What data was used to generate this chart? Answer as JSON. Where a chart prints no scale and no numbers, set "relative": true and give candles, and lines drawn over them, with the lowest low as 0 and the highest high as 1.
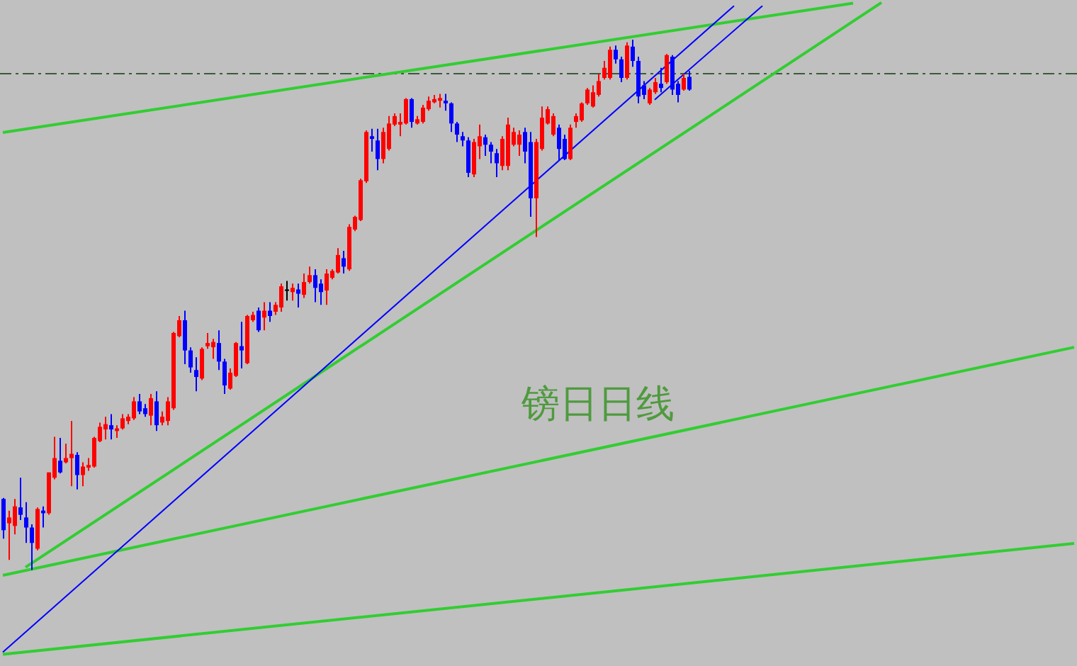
{
  "chart_data": {
    "type": "candlestick",
    "relative": true,
    "categories": [
      null,
      null,
      null,
      null,
      null,
      null,
      null,
      null,
      null,
      null,
      null,
      null,
      null,
      null,
      null,
      null,
      null,
      null,
      null,
      null,
      null,
      null,
      null,
      null,
      null,
      null,
      null,
      null,
      null,
      null,
      null,
      null,
      null,
      null,
      null,
      null,
      null,
      null,
      null,
      null,
      null,
      null,
      null,
      null,
      null,
      null,
      null,
      null,
      null,
      null,
      null,
      null,
      null,
      null,
      null,
      null,
      null,
      null,
      null,
      null,
      null,
      null,
      null,
      null,
      null,
      null,
      null,
      null,
      null,
      null,
      null,
      null,
      null,
      null,
      null,
      null,
      null,
      null,
      null,
      null,
      null,
      null,
      null,
      null,
      null,
      null,
      null,
      null,
      null,
      null,
      null,
      null,
      null,
      null,
      null,
      null,
      null,
      null,
      null,
      null,
      null,
      null,
      null,
      null,
      null,
      null,
      null,
      null,
      null,
      null,
      null,
      null,
      null,
      null,
      null,
      null,
      null,
      null,
      null,
      null,
      null,
      null,
      null,
      null,
      null,
      null,
      null,
      null,
      null,
      null,
      null,
      null,
      null,
      null,
      null,
      null,
      null,
      null,
      null,
      null,
      null,
      null,
      null,
      null,
      null,
      null,
      null,
      null,
      null,
      null,
      null,
      null,
      null,
      null,
      null,
      null,
      null,
      null,
      null,
      null,
      null,
      null,
      null,
      null,
      null,
      null,
      null,
      null,
      null,
      null,
      null,
      null,
      null,
      null,
      null,
      null,
      null,
      null,
      null,
      null,
      null,
      null,
      null,
      null,
      null,
      null,
      null,
      null,
      null,
      null
    ],
    "ohlc": [
      [
        0.134,
        0.136,
        0.059,
        0.075
      ],
      [
        0.088,
        0.112,
        0.019,
        0.099
      ],
      [
        0.083,
        0.134,
        0.067,
        0.12
      ],
      [
        0.118,
        0.174,
        0.094,
        0.104
      ],
      [
        0.099,
        0.128,
        0.051,
        0.08
      ],
      [
        0.08,
        0.086,
        0,
        0.051
      ],
      [
        0.04,
        0.118,
        0.037,
        0.115
      ],
      [
        0.112,
        0.12,
        0.08,
        0.107
      ],
      [
        0.107,
        0.184,
        0.104,
        0.184
      ],
      [
        0.174,
        0.251,
        0.171,
        0.211
      ],
      [
        0.206,
        0.249,
        0.182,
        0.184
      ],
      [
        0.203,
        0.238,
        0.201,
        0.211
      ],
      [
        0.211,
        0.281,
        0.158,
        0.219
      ],
      [
        0.217,
        0.222,
        0.152,
        0.179
      ],
      [
        0.179,
        0.203,
        0.158,
        0.195
      ],
      [
        0.193,
        0.211,
        0.187,
        0.198
      ],
      [
        0.195,
        0.251,
        0.193,
        0.249
      ],
      [
        0.243,
        0.278,
        0.241,
        0.27
      ],
      [
        0.265,
        0.289,
        0.246,
        0.275
      ],
      [
        0.273,
        0.294,
        0.246,
        0.265
      ],
      [
        0.262,
        0.273,
        0.249,
        0.267
      ],
      [
        0.267,
        0.294,
        0.265,
        0.286
      ],
      [
        0.281,
        0.294,
        0.275,
        0.289
      ],
      [
        0.286,
        0.326,
        0.283,
        0.318
      ],
      [
        0.318,
        0.332,
        0.294,
        0.299
      ],
      [
        0.305,
        0.313,
        0.289,
        0.294
      ],
      [
        0.291,
        0.332,
        0.273,
        0.324
      ],
      [
        0.318,
        0.337,
        0.262,
        0.273
      ],
      [
        0.278,
        0.299,
        0.273,
        0.289
      ],
      [
        0.281,
        0.326,
        0.273,
        0.318
      ],
      [
        0.305,
        0.449,
        0.302,
        0.447
      ],
      [
        0.441,
        0.479,
        0.439,
        0.471
      ],
      [
        0.471,
        0.489,
        0.388,
        0.414
      ],
      [
        0.414,
        0.42,
        0.372,
        0.382
      ],
      [
        0.377,
        0.401,
        0.337,
        0.364
      ],
      [
        0.361,
        0.42,
        0.358,
        0.417
      ],
      [
        0.422,
        0.447,
        0.417,
        0.428
      ],
      [
        0.42,
        0.436,
        0.398,
        0.43
      ],
      [
        0.428,
        0.452,
        0.377,
        0.393
      ],
      [
        0.393,
        0.398,
        0.332,
        0.348
      ],
      [
        0.342,
        0.38,
        0.34,
        0.372
      ],
      [
        0.366,
        0.43,
        0.364,
        0.428
      ],
      [
        0.422,
        0.468,
        0.38,
        0.414
      ],
      [
        0.39,
        0.481,
        0.388,
        0.479
      ],
      [
        0.471,
        0.487,
        0.468,
        0.481
      ],
      [
        0.489,
        0.495,
        0.449,
        0.452
      ],
      [
        0.476,
        0.505,
        0.452,
        0.489
      ],
      [
        0.489,
        0.505,
        0.468,
        0.479
      ],
      [
        0.487,
        0.505,
        0.481,
        0.5
      ],
      [
        0.495,
        0.54,
        0.487,
        0.535
      ],
      [
        0.529,
        0.545,
        0.508,
        0.529
      ],
      [
        0.524,
        0.54,
        0.508,
        0.532
      ],
      [
        0.529,
        0.54,
        0.495,
        0.521
      ],
      [
        0.519,
        0.559,
        0.513,
        0.543
      ],
      [
        0.543,
        0.572,
        0.54,
        0.556
      ],
      [
        0.556,
        0.567,
        0.505,
        0.532
      ],
      [
        0.54,
        0.548,
        0.5,
        0.524
      ],
      [
        0.527,
        0.567,
        0.5,
        0.559
      ],
      [
        0.551,
        0.567,
        0.548,
        0.564
      ],
      [
        0.561,
        0.607,
        0.559,
        0.594
      ],
      [
        0.588,
        0.602,
        0.559,
        0.572
      ],
      [
        0.567,
        0.652,
        0.564,
        0.647
      ],
      [
        0.642,
        0.668,
        0.639,
        0.666
      ],
      [
        0.66,
        0.738,
        0.658,
        0.735
      ],
      [
        0.733,
        0.829,
        0.73,
        0.826
      ],
      [
        0.818,
        0.832,
        0.789,
        0.813
      ],
      [
        0.81,
        0.832,
        0.754,
        0.775
      ],
      [
        0.775,
        0.834,
        0.767,
        0.826
      ],
      [
        0.794,
        0.856,
        0.791,
        0.842
      ],
      [
        0.84,
        0.861,
        0.837,
        0.856
      ],
      [
        0.84,
        0.861,
        0.818,
        0.845
      ],
      [
        0.842,
        0.89,
        0.84,
        0.888
      ],
      [
        0.888,
        0.89,
        0.834,
        0.845
      ],
      [
        0.842,
        0.856,
        0.84,
        0.85
      ],
      [
        0.845,
        0.877,
        0.842,
        0.872
      ],
      [
        0.869,
        0.893,
        0.866,
        0.885
      ],
      [
        0.882,
        0.896,
        0.88,
        0.888
      ],
      [
        0.885,
        0.898,
        0.872,
        0.89
      ],
      [
        0.885,
        0.898,
        0.866,
        0.88
      ],
      [
        0.88,
        0.882,
        0.826,
        0.842
      ],
      [
        0.842,
        0.845,
        0.807,
        0.821
      ],
      [
        0.818,
        0.826,
        0.799,
        0.81
      ],
      [
        0.81,
        0.816,
        0.741,
        0.749
      ],
      [
        0.746,
        0.813,
        0.741,
        0.807
      ],
      [
        0.799,
        0.84,
        0.775,
        0.818
      ],
      [
        0.816,
        0.821,
        0.781,
        0.802
      ],
      [
        0.802,
        0.807,
        0.767,
        0.789
      ],
      [
        0.786,
        0.794,
        0.741,
        0.767
      ],
      [
        0.762,
        0.818,
        0.754,
        0.813
      ],
      [
        0.762,
        0.853,
        0.754,
        0.84
      ],
      [
        0.802,
        0.834,
        0.799,
        0.826
      ],
      [
        0.802,
        0.829,
        0.781,
        0.821
      ],
      [
        0.826,
        0.834,
        0.767,
        0.789
      ],
      [
        0.807,
        0.826,
        0.666,
        0.701
      ],
      [
        0.701,
        0.813,
        0.628,
        0.807
      ],
      [
        0.794,
        0.874,
        0.791,
        0.853
      ],
      [
        0.842,
        0.874,
        0.84,
        0.869
      ],
      [
        0.821,
        0.861,
        0.818,
        0.856
      ],
      [
        0.834,
        0.84,
        0.773,
        0.794
      ],
      [
        0.813,
        0.821,
        0.773,
        0.775
      ],
      [
        0.775,
        0.84,
        0.773,
        0.834
      ],
      [
        0.845,
        0.861,
        0.834,
        0.856
      ],
      [
        0.848,
        0.882,
        0.845,
        0.88
      ],
      [
        0.88,
        0.909,
        0.877,
        0.906
      ],
      [
        0.874,
        0.914,
        0.872,
        0.901
      ],
      [
        0.896,
        0.936,
        0.893,
        0.922
      ],
      [
        0.928,
        0.96,
        0.925,
        0.947
      ],
      [
        0.928,
        0.987,
        0.925,
        0.981
      ],
      [
        0.981,
        0.989,
        0.955,
        0.963
      ],
      [
        0.963,
        0.968,
        0.92,
        0.928
      ],
      [
        0.928,
        0.995,
        0.925,
        0.989
      ],
      [
        0.987,
        1,
        0.949,
        0.96
      ],
      [
        0.96,
        0.968,
        0.88,
        0.893
      ],
      [
        0.914,
        0.922,
        0.888,
        0.896
      ],
      [
        0.88,
        0.909,
        0.877,
        0.906
      ],
      [
        0.901,
        0.928,
        0.898,
        0.92
      ],
      [
        0.917,
        0.947,
        0.901,
        0.909
      ],
      [
        0.92,
        0.973,
        0.917,
        0.971
      ],
      [
        0.968,
        0.971,
        0.896,
        0.906
      ],
      [
        0.917,
        0.922,
        0.882,
        0.896
      ],
      [
        0.906,
        0.936,
        0.904,
        0.928
      ],
      [
        0.93,
        0.941,
        0.904,
        0.906
      ],
      null,
      null,
      null,
      null,
      null,
      null,
      null,
      null,
      null,
      null,
      null,
      null,
      null,
      null,
      null,
      null,
      null,
      null,
      null,
      null,
      null,
      null,
      null,
      null,
      null,
      null,
      null,
      null,
      null,
      null,
      null,
      null,
      null,
      null,
      null,
      null,
      null,
      null,
      null,
      null,
      null,
      null,
      null,
      null,
      null,
      null,
      null,
      null,
      null,
      null,
      null,
      null,
      null,
      null,
      null,
      null,
      null,
      null,
      null,
      null,
      null,
      null,
      null,
      null,
      null,
      null,
      null,
      null
    ],
    "colors": [
      "#0000ff",
      "#ff0000",
      "#ff0000",
      "#0000ff",
      "#0000ff",
      "#0000ff",
      "#ff0000",
      "#0000ff",
      "#ff0000",
      "#ff0000",
      "#0000ff",
      "#ff0000",
      "#ff0000",
      "#0000ff",
      "#ff0000",
      "#ff0000",
      "#ff0000",
      "#ff0000",
      "#ff0000",
      "#0000ff",
      "#ff0000",
      "#ff0000",
      "#ff0000",
      "#ff0000",
      "#0000ff",
      "#0000ff",
      "#ff0000",
      "#0000ff",
      "#ff0000",
      "#ff0000",
      "#ff0000",
      "#ff0000",
      "#0000ff",
      "#0000ff",
      "#0000ff",
      "#ff0000",
      "#ff0000",
      "#ff0000",
      "#0000ff",
      "#0000ff",
      "#ff0000",
      "#ff0000",
      "#0000ff",
      "#ff0000",
      "#ff0000",
      "#0000ff",
      "#ff0000",
      "#0000ff",
      "#ff0000",
      "#ff0000",
      "#000000",
      "#ff0000",
      "#0000ff",
      "#ff0000",
      "#ff0000",
      "#0000ff",
      "#0000ff",
      "#ff0000",
      "#ff0000",
      "#ff0000",
      "#0000ff",
      "#ff0000",
      "#ff0000",
      "#ff0000",
      "#ff0000",
      "#0000ff",
      "#0000ff",
      "#ff0000",
      "#ff0000",
      "#ff0000",
      "#ff0000",
      "#ff0000",
      "#0000ff",
      "#ff0000",
      "#ff0000",
      "#ff0000",
      "#ff0000",
      "#ff0000",
      "#0000ff",
      "#0000ff",
      "#0000ff",
      "#0000ff",
      "#0000ff",
      "#ff0000",
      "#ff0000",
      "#0000ff",
      "#0000ff",
      "#0000ff",
      "#ff0000",
      "#ff0000",
      "#ff0000",
      "#ff0000",
      "#0000ff",
      "#0000ff",
      "#ff0000",
      "#ff0000",
      "#ff0000",
      "#ff0000",
      "#0000ff",
      "#0000ff",
      "#ff0000",
      "#ff0000",
      "#ff0000",
      "#ff0000",
      "#ff0000",
      "#ff0000",
      "#ff0000",
      "#ff0000",
      "#0000ff",
      "#0000ff",
      "#ff0000",
      "#0000ff",
      "#0000ff",
      "#0000ff",
      "#ff0000",
      "#ff0000",
      "#0000ff",
      "#ff0000",
      "#0000ff",
      "#0000ff",
      "#ff0000",
      "#0000ff",
      null,
      null,
      null,
      null,
      null,
      null,
      null,
      null,
      null,
      null,
      null,
      null,
      null,
      null,
      null,
      null,
      null,
      null,
      null,
      null,
      null,
      null,
      null,
      null,
      null,
      null,
      null,
      null,
      null,
      null,
      null,
      null,
      null,
      null,
      null,
      null,
      null,
      null,
      null,
      null,
      null,
      null,
      null,
      null,
      null,
      null,
      null,
      null,
      null,
      null,
      null,
      null,
      null,
      null,
      null,
      null,
      null,
      null,
      null,
      null,
      null,
      null,
      null,
      null,
      null,
      null,
      null,
      null
    ],
    "series": [
      {
        "type": "line",
        "color": "#32cd32",
        "values": [
          0.825,
          null,
          null,
          null,
          null,
          null,
          null,
          null,
          null,
          null,
          null,
          null,
          null,
          null,
          null,
          null,
          null,
          null,
          null,
          null,
          null,
          null,
          null,
          null,
          null,
          null,
          null,
          null,
          null,
          null,
          null,
          null,
          null,
          null,
          null,
          null,
          null,
          null,
          null,
          null,
          null,
          null,
          null,
          null,
          null,
          null,
          null,
          null,
          null,
          null,
          null,
          null,
          null,
          null,
          null,
          null,
          null,
          null,
          null,
          null,
          null,
          null,
          null,
          null,
          null,
          null,
          null,
          null,
          null,
          null,
          null,
          null,
          null,
          null,
          null,
          null,
          null,
          null,
          null,
          null,
          null,
          null,
          null,
          null,
          null,
          null,
          null,
          null,
          null,
          null,
          null,
          null,
          null,
          null,
          null,
          null,
          null,
          null,
          null,
          null,
          null,
          null,
          null,
          null,
          null,
          null,
          null,
          null,
          null,
          null,
          null,
          null,
          null,
          null,
          null,
          null,
          null,
          null,
          null,
          null,
          null,
          null,
          null,
          null,
          null,
          null,
          null,
          null,
          null,
          null,
          null,
          null,
          null,
          null,
          null,
          null,
          null,
          null,
          null,
          null,
          null,
          null,
          null,
          null,
          null,
          null,
          null,
          null,
          null,
          null,
          1.069,
          null,
          null,
          null,
          null,
          null,
          null,
          null,
          null,
          null,
          null,
          null,
          null,
          null,
          null,
          null,
          null,
          null,
          null,
          null,
          null,
          null,
          null,
          null,
          null,
          null,
          null,
          null,
          null,
          null,
          null,
          null,
          null,
          null,
          null,
          null,
          null,
          null,
          null,
          null
        ]
      },
      {
        "type": "line",
        "color": "#32cd32",
        "values": [
          null,
          null,
          null,
          null,
          0.005,
          null,
          null,
          null,
          null,
          null,
          null,
          null,
          null,
          null,
          null,
          null,
          null,
          null,
          null,
          null,
          null,
          null,
          null,
          null,
          null,
          null,
          null,
          null,
          null,
          null,
          null,
          null,
          null,
          null,
          null,
          null,
          null,
          null,
          null,
          null,
          null,
          null,
          null,
          null,
          null,
          null,
          null,
          null,
          null,
          null,
          null,
          null,
          null,
          null,
          null,
          null,
          null,
          null,
          null,
          null,
          null,
          null,
          null,
          null,
          null,
          null,
          null,
          null,
          null,
          null,
          null,
          null,
          null,
          null,
          null,
          null,
          null,
          null,
          null,
          null,
          null,
          null,
          null,
          null,
          null,
          null,
          null,
          null,
          null,
          null,
          null,
          null,
          null,
          null,
          null,
          null,
          null,
          null,
          null,
          null,
          null,
          null,
          null,
          null,
          null,
          null,
          null,
          null,
          null,
          null,
          null,
          null,
          null,
          null,
          null,
          null,
          null,
          null,
          null,
          null,
          null,
          null,
          null,
          null,
          null,
          null,
          null,
          null,
          null,
          null,
          null,
          null,
          null,
          null,
          null,
          null,
          null,
          null,
          null,
          null,
          null,
          null,
          null,
          null,
          null,
          null,
          null,
          null,
          null,
          null,
          null,
          null,
          null,
          null,
          null,
          1.07,
          null,
          null,
          null,
          null,
          null,
          null,
          null,
          null,
          null,
          null,
          null,
          null,
          null,
          null,
          null,
          null,
          null,
          null,
          null,
          null,
          null,
          null,
          null,
          null,
          null,
          null,
          null,
          null,
          null,
          null,
          null,
          null,
          null,
          null
        ]
      },
      {
        "type": "line",
        "color": "#32cd32",
        "values": [
          -0.01,
          null,
          null,
          null,
          null,
          null,
          null,
          null,
          null,
          null,
          null,
          null,
          null,
          null,
          null,
          null,
          null,
          null,
          null,
          null,
          null,
          null,
          null,
          null,
          null,
          null,
          null,
          null,
          null,
          null,
          null,
          null,
          null,
          null,
          null,
          null,
          null,
          null,
          null,
          null,
          null,
          null,
          null,
          null,
          null,
          null,
          null,
          null,
          null,
          null,
          null,
          null,
          null,
          null,
          null,
          null,
          null,
          null,
          null,
          null,
          null,
          null,
          null,
          null,
          null,
          null,
          null,
          null,
          null,
          null,
          null,
          null,
          null,
          null,
          null,
          null,
          null,
          null,
          null,
          null,
          null,
          null,
          null,
          null,
          null,
          null,
          null,
          null,
          null,
          null,
          null,
          null,
          null,
          null,
          null,
          null,
          null,
          null,
          null,
          null,
          null,
          null,
          null,
          null,
          null,
          null,
          null,
          null,
          null,
          null,
          null,
          null,
          null,
          null,
          null,
          null,
          null,
          null,
          null,
          null,
          null,
          null,
          null,
          null,
          null,
          null,
          null,
          null,
          null,
          null,
          null,
          null,
          null,
          null,
          null,
          null,
          null,
          null,
          null,
          null,
          null,
          null,
          null,
          null,
          null,
          null,
          null,
          null,
          null,
          null,
          null,
          null,
          null,
          null,
          null,
          null,
          null,
          null,
          null,
          null,
          null,
          null,
          null,
          null,
          null,
          null,
          null,
          null,
          null,
          null,
          null,
          null,
          null,
          null,
          null,
          null,
          null,
          null,
          null,
          null,
          null,
          null,
          null,
          null,
          null,
          null,
          null,
          null,
          null,
          0.42
        ]
      },
      {
        "type": "line",
        "color": "#32cd32",
        "values": [
          -0.159,
          null,
          null,
          null,
          null,
          null,
          null,
          null,
          null,
          null,
          null,
          null,
          null,
          null,
          null,
          null,
          null,
          null,
          null,
          null,
          null,
          null,
          null,
          null,
          null,
          null,
          null,
          null,
          null,
          null,
          null,
          null,
          null,
          null,
          null,
          null,
          null,
          null,
          null,
          null,
          null,
          null,
          null,
          null,
          null,
          null,
          null,
          null,
          null,
          null,
          null,
          null,
          null,
          null,
          null,
          null,
          null,
          null,
          null,
          null,
          null,
          null,
          null,
          null,
          null,
          null,
          null,
          null,
          null,
          null,
          null,
          null,
          null,
          null,
          null,
          null,
          null,
          null,
          null,
          null,
          null,
          null,
          null,
          null,
          null,
          null,
          null,
          null,
          null,
          null,
          null,
          null,
          null,
          null,
          null,
          null,
          null,
          null,
          null,
          null,
          null,
          null,
          null,
          null,
          null,
          null,
          null,
          null,
          null,
          null,
          null,
          null,
          null,
          null,
          null,
          null,
          null,
          null,
          null,
          null,
          null,
          null,
          null,
          null,
          null,
          null,
          null,
          null,
          null,
          null,
          null,
          null,
          null,
          null,
          null,
          null,
          null,
          null,
          null,
          null,
          null,
          null,
          null,
          null,
          null,
          null,
          null,
          null,
          null,
          null,
          null,
          null,
          null,
          null,
          null,
          null,
          null,
          null,
          null,
          null,
          null,
          null,
          null,
          null,
          null,
          null,
          null,
          null,
          null,
          null,
          null,
          null,
          null,
          null,
          null,
          null,
          null,
          null,
          null,
          null,
          null,
          null,
          null,
          null,
          null,
          null,
          null,
          null,
          null,
          0.05
        ]
      },
      {
        "type": "line",
        "color": "#0000ff",
        "values": [
          -0.155,
          null,
          null,
          null,
          null,
          null,
          null,
          null,
          null,
          null,
          null,
          null,
          null,
          null,
          null,
          null,
          null,
          null,
          null,
          null,
          null,
          null,
          null,
          null,
          null,
          null,
          null,
          null,
          null,
          null,
          null,
          null,
          null,
          null,
          null,
          null,
          null,
          null,
          null,
          null,
          null,
          null,
          null,
          null,
          null,
          null,
          null,
          null,
          null,
          null,
          null,
          null,
          null,
          null,
          null,
          null,
          null,
          null,
          null,
          null,
          null,
          null,
          null,
          null,
          null,
          null,
          null,
          null,
          null,
          null,
          null,
          null,
          null,
          null,
          null,
          null,
          null,
          null,
          null,
          null,
          null,
          null,
          null,
          null,
          null,
          null,
          null,
          null,
          null,
          null,
          null,
          null,
          null,
          null,
          null,
          null,
          null,
          null,
          null,
          null,
          null,
          null,
          null,
          null,
          null,
          null,
          null,
          null,
          null,
          null,
          null,
          null,
          null,
          null,
          null,
          null,
          null,
          null,
          null,
          null,
          null,
          null,
          null,
          null,
          null,
          null,
          null,
          null,
          null,
          1.064,
          null,
          null,
          null,
          null,
          null,
          null,
          null,
          null,
          null,
          null,
          null,
          null,
          null,
          null,
          null,
          null,
          null,
          null,
          null,
          null,
          null,
          null,
          null,
          null,
          null,
          null,
          null,
          null,
          null,
          null,
          null,
          null,
          null,
          null,
          null,
          null,
          null,
          null,
          null,
          null,
          null,
          null,
          null,
          null,
          null,
          null,
          null,
          null,
          null,
          null,
          null,
          null,
          null,
          null,
          null,
          null,
          null,
          null,
          null,
          null
        ]
      },
      {
        "type": "line",
        "color": "#0000ff",
        "values": [
          null,
          null,
          null,
          null,
          null,
          null,
          null,
          null,
          null,
          null,
          null,
          null,
          null,
          null,
          null,
          null,
          null,
          null,
          null,
          null,
          null,
          null,
          null,
          null,
          null,
          null,
          null,
          null,
          null,
          null,
          null,
          null,
          null,
          null,
          null,
          null,
          null,
          null,
          null,
          null,
          null,
          null,
          null,
          null,
          null,
          null,
          null,
          null,
          null,
          null,
          null,
          null,
          null,
          null,
          null,
          null,
          null,
          null,
          null,
          null,
          null,
          null,
          null,
          null,
          null,
          null,
          null,
          null,
          null,
          null,
          null,
          null,
          null,
          null,
          null,
          null,
          null,
          null,
          null,
          null,
          null,
          null,
          null,
          null,
          null,
          null,
          null,
          null,
          null,
          null,
          null,
          null,
          null,
          null,
          null,
          null,
          null,
          null,
          null,
          null,
          null,
          null,
          null,
          null,
          null,
          null,
          null,
          null,
          null,
          null,
          null,
          null,
          null,
          null,
          null,
          0.887,
          null,
          null,
          null,
          null,
          null,
          null,
          null,
          null,
          null,
          null,
          null,
          null,
          null,
          null,
          null,
          null,
          null,
          null,
          1.064,
          null,
          null,
          null,
          null,
          null,
          null,
          null,
          null,
          null,
          null,
          null,
          null,
          null,
          null,
          null,
          null,
          null,
          null,
          null,
          null,
          null,
          null,
          null,
          null,
          null,
          null,
          null,
          null,
          null,
          null,
          null,
          null,
          null,
          null,
          null,
          null,
          null,
          null,
          null,
          null,
          null,
          null,
          null,
          null,
          null,
          null,
          null,
          null,
          null,
          null,
          null,
          null,
          null,
          null,
          null
        ]
      }
    ],
    "ref_lines": [
      {
        "axis": "y",
        "value": 0.936,
        "line_style": "dashed",
        "color": "#3a5a3a"
      }
    ],
    "annotations": [
      "镑日日线"
    ]
  }
}
